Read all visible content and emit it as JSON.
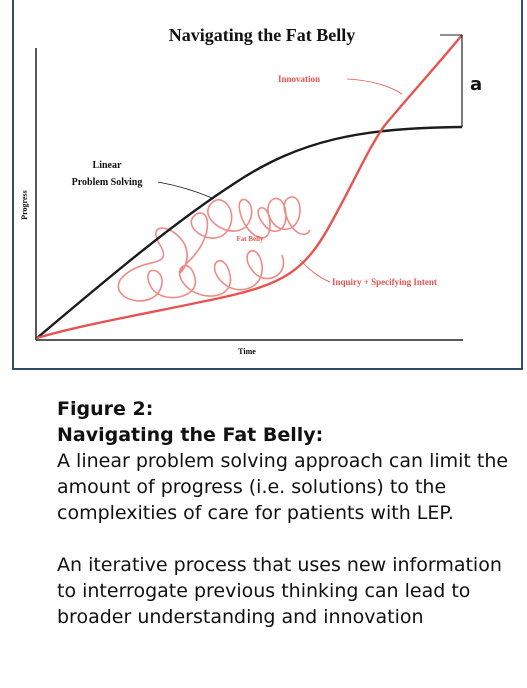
{
  "diagram": {
    "title": "Navigating the Fat Belly",
    "y_axis_label": "Progress",
    "x_axis_label": "Time",
    "labels": {
      "innovation": "Innovation",
      "linear": [
        "Linear",
        "Problem Solving"
      ],
      "fat_belly": "Fat Belly",
      "inquiry": "Inquiry + Specifying Intent",
      "gap": "a"
    },
    "colors": {
      "linear_curve": "#1a1a1a",
      "innovation_curve": "#e8534f",
      "loops": "#f08a86",
      "frame": "#2f4a6b"
    }
  },
  "caption": {
    "title": "Figure 2:",
    "subtitle": "Navigating the Fat Belly:",
    "paragraph1": "A linear problem solving approach can limit the amount of progress (i.e. solutions) to the complexities of care for patients with LEP.",
    "paragraph2": "An iterative process that uses new information to interrogate previous thinking can lead to broader understanding and innovation"
  }
}
